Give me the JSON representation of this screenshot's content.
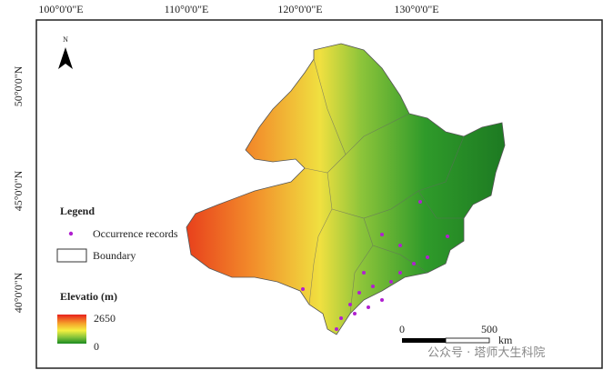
{
  "map": {
    "lon_labels": [
      "100°0'0\"E",
      "110°0'0\"E",
      "120°0'0\"E",
      "130°0'0\"E"
    ],
    "lat_labels": [
      "50°0'0\"N",
      "45°0'0\"N",
      "40°0'0\"N"
    ],
    "north": "N",
    "legend": {
      "title": "Legend",
      "items": [
        "Occurrence records",
        "Boundary"
      ]
    },
    "elevation": {
      "title": "Elevatio (m)",
      "max": "2650",
      "min": "0"
    },
    "scale_bar": {
      "labels": [
        "0",
        "500"
      ],
      "unit": "km"
    },
    "watermark": "公众号 · 塔师大生科院"
  }
}
